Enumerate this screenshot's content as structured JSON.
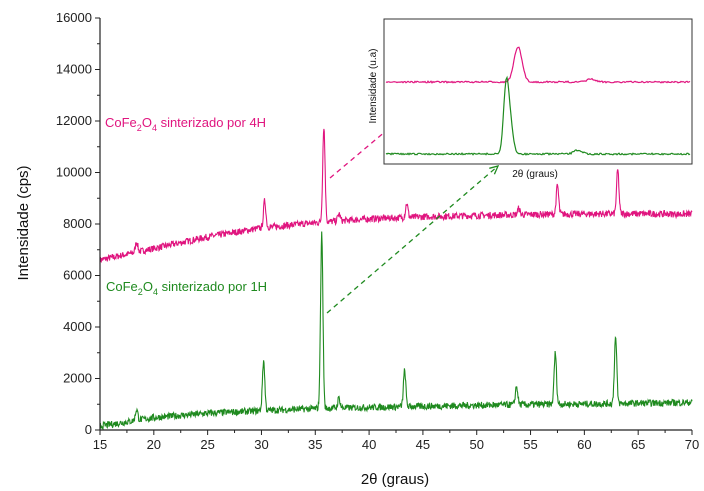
{
  "chart_data": {
    "type": "line",
    "xlabel": "2θ (graus)",
    "ylabel": "Intensidade (cps)",
    "xlim": [
      15,
      70
    ],
    "ylim": [
      0,
      16000
    ],
    "x_ticks": [
      15,
      20,
      25,
      30,
      35,
      40,
      45,
      50,
      55,
      60,
      65,
      70
    ],
    "y_ticks": [
      0,
      2000,
      4000,
      6000,
      8000,
      10000,
      12000,
      14000,
      16000
    ],
    "grid": false,
    "colors": {
      "series_4h": "#e0157f",
      "series_1h": "#1f8a1f"
    },
    "series": [
      {
        "key": "series_4h",
        "name_parts": [
          "CoFe",
          "2",
          "O",
          "4",
          " sinterizado por 4H"
        ],
        "baseline_points": [
          [
            15,
            6600
          ],
          [
            20,
            7050
          ],
          [
            25,
            7500
          ],
          [
            30,
            7850
          ],
          [
            35,
            8050
          ],
          [
            40,
            8200
          ],
          [
            45,
            8280
          ],
          [
            50,
            8330
          ],
          [
            55,
            8370
          ],
          [
            60,
            8390
          ],
          [
            65,
            8400
          ],
          [
            70,
            8380
          ]
        ],
        "peaks": [
          {
            "x": 18.4,
            "y": 7300
          },
          {
            "x": 30.3,
            "y": 8900
          },
          {
            "x": 35.8,
            "y": 11800
          },
          {
            "x": 37.2,
            "y": 8400
          },
          {
            "x": 43.5,
            "y": 8800
          },
          {
            "x": 53.9,
            "y": 8600
          },
          {
            "x": 57.5,
            "y": 9500
          },
          {
            "x": 63.1,
            "y": 10100
          }
        ]
      },
      {
        "key": "series_1h",
        "name_parts": [
          "CoFe",
          "2",
          "O",
          "4",
          " sinterizado por 1H"
        ],
        "baseline_points": [
          [
            15,
            150
          ],
          [
            18,
            350
          ],
          [
            20,
            480
          ],
          [
            25,
            650
          ],
          [
            30,
            750
          ],
          [
            35,
            830
          ],
          [
            40,
            880
          ],
          [
            45,
            920
          ],
          [
            50,
            960
          ],
          [
            55,
            990
          ],
          [
            60,
            1010
          ],
          [
            65,
            1040
          ],
          [
            70,
            1070
          ]
        ],
        "peaks": [
          {
            "x": 18.4,
            "y": 800
          },
          {
            "x": 30.2,
            "y": 2700
          },
          {
            "x": 35.6,
            "y": 7600
          },
          {
            "x": 37.2,
            "y": 1250
          },
          {
            "x": 43.3,
            "y": 2300
          },
          {
            "x": 53.7,
            "y": 1700
          },
          {
            "x": 57.3,
            "y": 3000
          },
          {
            "x": 62.9,
            "y": 3600
          }
        ]
      }
    ],
    "inset": {
      "xlabel": "2θ (graus)",
      "ylabel": "Intensidade (u.a)"
    }
  }
}
